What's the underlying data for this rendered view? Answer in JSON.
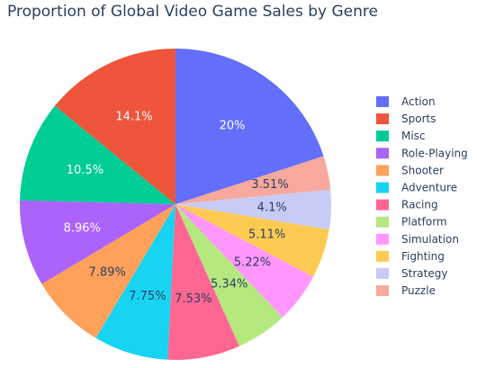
{
  "chart_data": {
    "type": "pie",
    "title": "Proportion of Global Video Game Sales by Genre",
    "categories": [
      "Action",
      "Sports",
      "Misc",
      "Role-Playing",
      "Shooter",
      "Adventure",
      "Racing",
      "Platform",
      "Simulation",
      "Fighting",
      "Strategy",
      "Puzzle"
    ],
    "values": [
      20,
      14.1,
      10.5,
      8.96,
      7.89,
      7.75,
      7.53,
      5.34,
      5.22,
      5.11,
      4.1,
      3.51
    ],
    "labels": [
      "20%",
      "14.1%",
      "10.5%",
      "8.96%",
      "7.89%",
      "7.75%",
      "7.53%",
      "5.34%",
      "5.22%",
      "5.11%",
      "4.1%",
      "3.51%"
    ],
    "slice_order": [
      "Action",
      "Puzzle",
      "Strategy",
      "Fighting",
      "Simulation",
      "Platform",
      "Racing",
      "Adventure",
      "Shooter",
      "Role-Playing",
      "Misc",
      "Sports"
    ],
    "direction": "clockwise",
    "colors": {
      "Action": "#636efa",
      "Sports": "#ef553b",
      "Misc": "#00cc96",
      "Role-Playing": "#ab63fa",
      "Shooter": "#ffa15a",
      "Adventure": "#19d3f3",
      "Racing": "#ff6692",
      "Platform": "#b6e880",
      "Simulation": "#ff97ff",
      "Fighting": "#fecb52",
      "Strategy": "#c8cbf5",
      "Puzzle": "#f6a99c"
    },
    "legend_position": "right"
  }
}
